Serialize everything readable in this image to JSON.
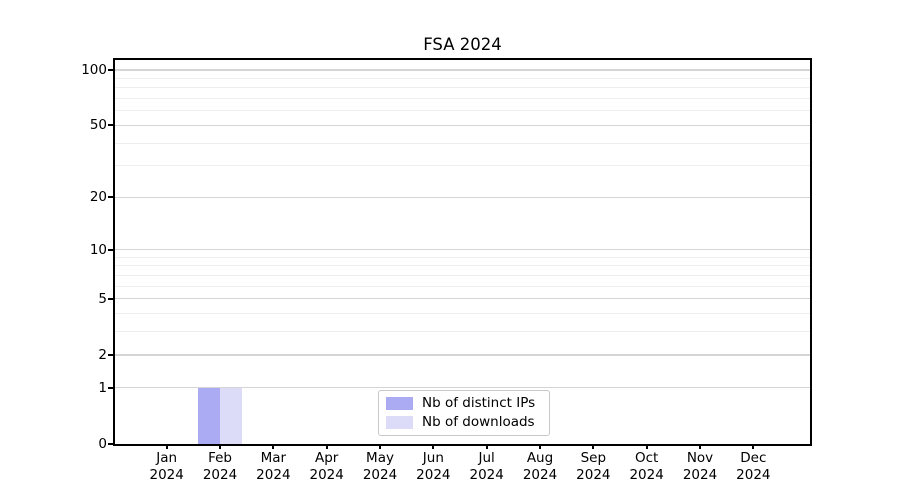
{
  "title": "FSA 2024",
  "chart_data": {
    "type": "bar",
    "title": "FSA 2024",
    "x_tick_labels": [
      "Jan 2024",
      "Feb 2024",
      "Mar 2024",
      "Apr 2024",
      "May 2024",
      "Jun 2024",
      "Jul 2024",
      "Aug 2024",
      "Sep 2024",
      "Oct 2024",
      "Nov 2024",
      "Dec 2024"
    ],
    "series": [
      {
        "name": "Nb of distinct IPs",
        "color": "#ababf4",
        "values": [
          0,
          1,
          0,
          0,
          0,
          0,
          0,
          0,
          0,
          0,
          0,
          0
        ]
      },
      {
        "name": "Nb of downloads",
        "color": "#dcdcf8",
        "values": [
          0,
          1,
          0,
          0,
          0,
          0,
          0,
          0,
          0,
          0,
          0,
          0
        ]
      }
    ],
    "yscale": "log1p",
    "ylim": [
      0,
      113
    ],
    "y_ticks_major": [
      0,
      1,
      2,
      5,
      10,
      20,
      50,
      100
    ],
    "y_ticks_minor": [
      3,
      4,
      6,
      7,
      8,
      9,
      30,
      40,
      60,
      70,
      80,
      90
    ],
    "grid": true,
    "legend_location": "lower center",
    "colors": {
      "axis": "#000000",
      "grid_major": "#d5d5d5",
      "grid_minor": "#eeeeee",
      "background": "#ffffff"
    }
  }
}
